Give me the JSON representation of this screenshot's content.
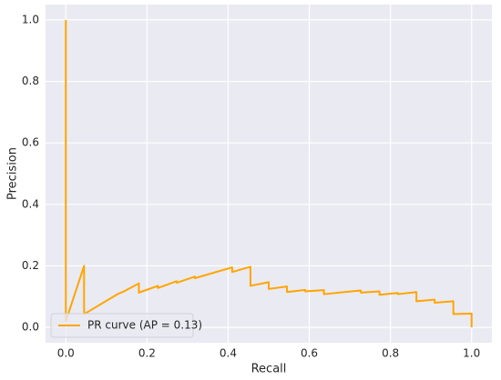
{
  "chart_data": {
    "type": "line",
    "x_label": "Recall",
    "y_label": "Precision",
    "xlim": [
      -0.05,
      1.05
    ],
    "ylim": [
      -0.05,
      1.05
    ],
    "xticks": [
      {
        "value": 0,
        "label": "0.0"
      },
      0.2,
      0.4,
      0.6,
      0.8,
      {
        "value": 1,
        "label": "1.0"
      }
    ],
    "yticks": [
      {
        "value": 0,
        "label": "0.0"
      },
      0.2,
      0.4,
      0.6,
      0.8,
      {
        "value": 1,
        "label": "1.0"
      }
    ],
    "grid": true,
    "legend": "lower left",
    "series": [
      {
        "name": "PR curve (AP = 0.13)",
        "color": "#ffa500",
        "x": [
          0,
          0,
          0.045,
          0.045,
          0.13,
          0.14,
          0.18,
          0.18,
          0.227,
          0.227,
          0.273,
          0.273,
          0.318,
          0.318,
          0.41,
          0.41,
          0.455,
          0.455,
          0.5,
          0.5,
          0.545,
          0.545,
          0.59,
          0.59,
          0.636,
          0.636,
          0.727,
          0.727,
          0.773,
          0.773,
          0.818,
          0.818,
          0.864,
          0.864,
          0.909,
          0.909,
          0.955,
          0.955,
          1.0,
          1.0
        ],
        "values": [
          1.0,
          0.02,
          0.2,
          0.043,
          0.11,
          0.115,
          0.143,
          0.113,
          0.135,
          0.128,
          0.15,
          0.145,
          0.165,
          0.16,
          0.195,
          0.18,
          0.197,
          0.135,
          0.147,
          0.125,
          0.133,
          0.115,
          0.122,
          0.117,
          0.121,
          0.108,
          0.12,
          0.113,
          0.117,
          0.106,
          0.112,
          0.108,
          0.115,
          0.085,
          0.09,
          0.08,
          0.085,
          0.043,
          0.045,
          0.0
        ]
      }
    ]
  }
}
